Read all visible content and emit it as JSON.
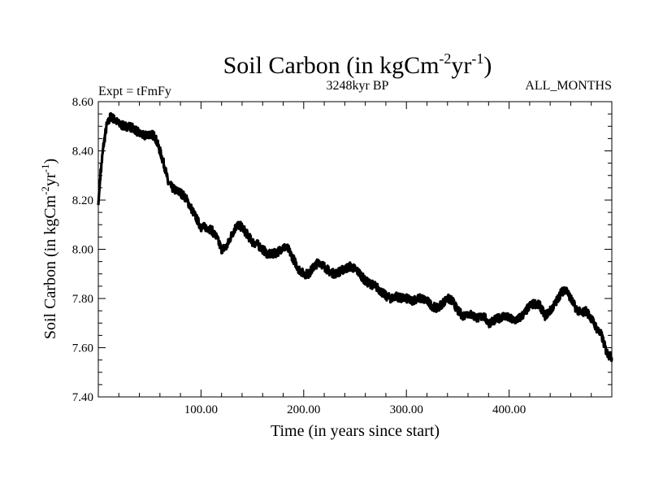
{
  "chart_data": {
    "type": "line",
    "title": "Soil Carbon (in kgCm",
    "title_sup1": "-2",
    "title_mid": "yr",
    "title_sup2": "-1",
    "title_end": ")",
    "subtitle_left": "Expt = tFmFy",
    "subtitle_center": "3248kyr BP",
    "subtitle_right": "ALL_MONTHS",
    "xlabel": "Time (in years since start)",
    "ylabel": "Soil Carbon (in kgCm",
    "ylabel_sup1": "-2",
    "ylabel_mid": "yr",
    "ylabel_sup2": "-1",
    "ylabel_end": ")",
    "xlim": [
      0,
      500
    ],
    "ylim": [
      7.4,
      8.6
    ],
    "x_ticks": [
      100,
      200,
      300,
      400
    ],
    "x_tick_labels": [
      "100.00",
      "200.00",
      "300.00",
      "400.00"
    ],
    "y_ticks": [
      7.4,
      7.6,
      7.8,
      8.0,
      8.2,
      8.4,
      8.6
    ],
    "y_tick_labels": [
      "7.40",
      "7.60",
      "7.80",
      "8.00",
      "8.20",
      "8.40",
      "8.60"
    ],
    "grid": false,
    "series": [
      {
        "name": "Soil Carbon",
        "color": "#000000",
        "x": [
          0,
          2,
          5,
          8,
          12,
          15,
          20,
          25,
          30,
          35,
          40,
          45,
          50,
          55,
          60,
          65,
          68,
          72,
          75,
          80,
          85,
          90,
          95,
          100,
          105,
          110,
          115,
          120,
          125,
          130,
          135,
          140,
          145,
          150,
          155,
          160,
          165,
          170,
          175,
          180,
          185,
          190,
          195,
          200,
          205,
          210,
          215,
          220,
          225,
          230,
          235,
          240,
          245,
          250,
          255,
          260,
          265,
          270,
          275,
          280,
          285,
          290,
          295,
          300,
          305,
          310,
          315,
          320,
          325,
          330,
          335,
          340,
          345,
          350,
          355,
          360,
          365,
          370,
          375,
          380,
          385,
          390,
          395,
          400,
          405,
          410,
          415,
          420,
          425,
          430,
          435,
          440,
          445,
          450,
          455,
          460,
          465,
          470,
          475,
          480,
          485,
          490,
          495,
          500
        ],
        "values": [
          8.18,
          8.3,
          8.42,
          8.5,
          8.54,
          8.53,
          8.51,
          8.5,
          8.5,
          8.49,
          8.47,
          8.46,
          8.47,
          8.46,
          8.4,
          8.33,
          8.27,
          8.25,
          8.24,
          8.23,
          8.21,
          8.17,
          8.13,
          8.09,
          8.09,
          8.08,
          8.05,
          8.0,
          8.01,
          8.06,
          8.1,
          8.09,
          8.06,
          8.03,
          8.02,
          8.0,
          7.98,
          7.98,
          7.99,
          8.01,
          8.0,
          7.96,
          7.92,
          7.9,
          7.9,
          7.93,
          7.95,
          7.93,
          7.91,
          7.9,
          7.91,
          7.92,
          7.93,
          7.92,
          7.9,
          7.87,
          7.86,
          7.85,
          7.83,
          7.81,
          7.8,
          7.81,
          7.8,
          7.8,
          7.79,
          7.8,
          7.8,
          7.79,
          7.77,
          7.76,
          7.78,
          7.8,
          7.79,
          7.75,
          7.73,
          7.74,
          7.73,
          7.72,
          7.73,
          7.7,
          7.71,
          7.72,
          7.73,
          7.72,
          7.71,
          7.72,
          7.74,
          7.77,
          7.78,
          7.77,
          7.73,
          7.75,
          7.78,
          7.82,
          7.84,
          7.8,
          7.76,
          7.74,
          7.75,
          7.72,
          7.68,
          7.65,
          7.58,
          7.56
        ]
      }
    ]
  }
}
